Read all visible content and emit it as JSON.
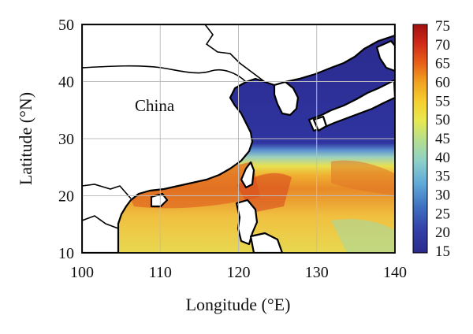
{
  "chart_data": {
    "type": "heatmap",
    "title": "",
    "xlabel": "Longitude (°E)",
    "ylabel": "Latitude (°N)",
    "x_range": [
      100,
      140
    ],
    "y_range": [
      10,
      50
    ],
    "x_ticks": [
      "100",
      "110",
      "120",
      "130",
      "140"
    ],
    "y_ticks": [
      "10",
      "20",
      "30",
      "40",
      "50"
    ],
    "grid": true,
    "map_labels": [
      "China"
    ],
    "colorbar": {
      "range": [
        15,
        75
      ],
      "ticks": [
        "15",
        "20",
        "25",
        "30",
        "35",
        "40",
        "45",
        "50",
        "55",
        "60",
        "65",
        "70",
        "75"
      ],
      "colors": [
        "#2b2a8c",
        "#3340a8",
        "#3f6fc0",
        "#5fa8d8",
        "#8cd0c8",
        "#b8e08a",
        "#e8e850",
        "#f5d030",
        "#f0a020",
        "#e86018",
        "#d02818",
        "#a01010"
      ]
    }
  }
}
